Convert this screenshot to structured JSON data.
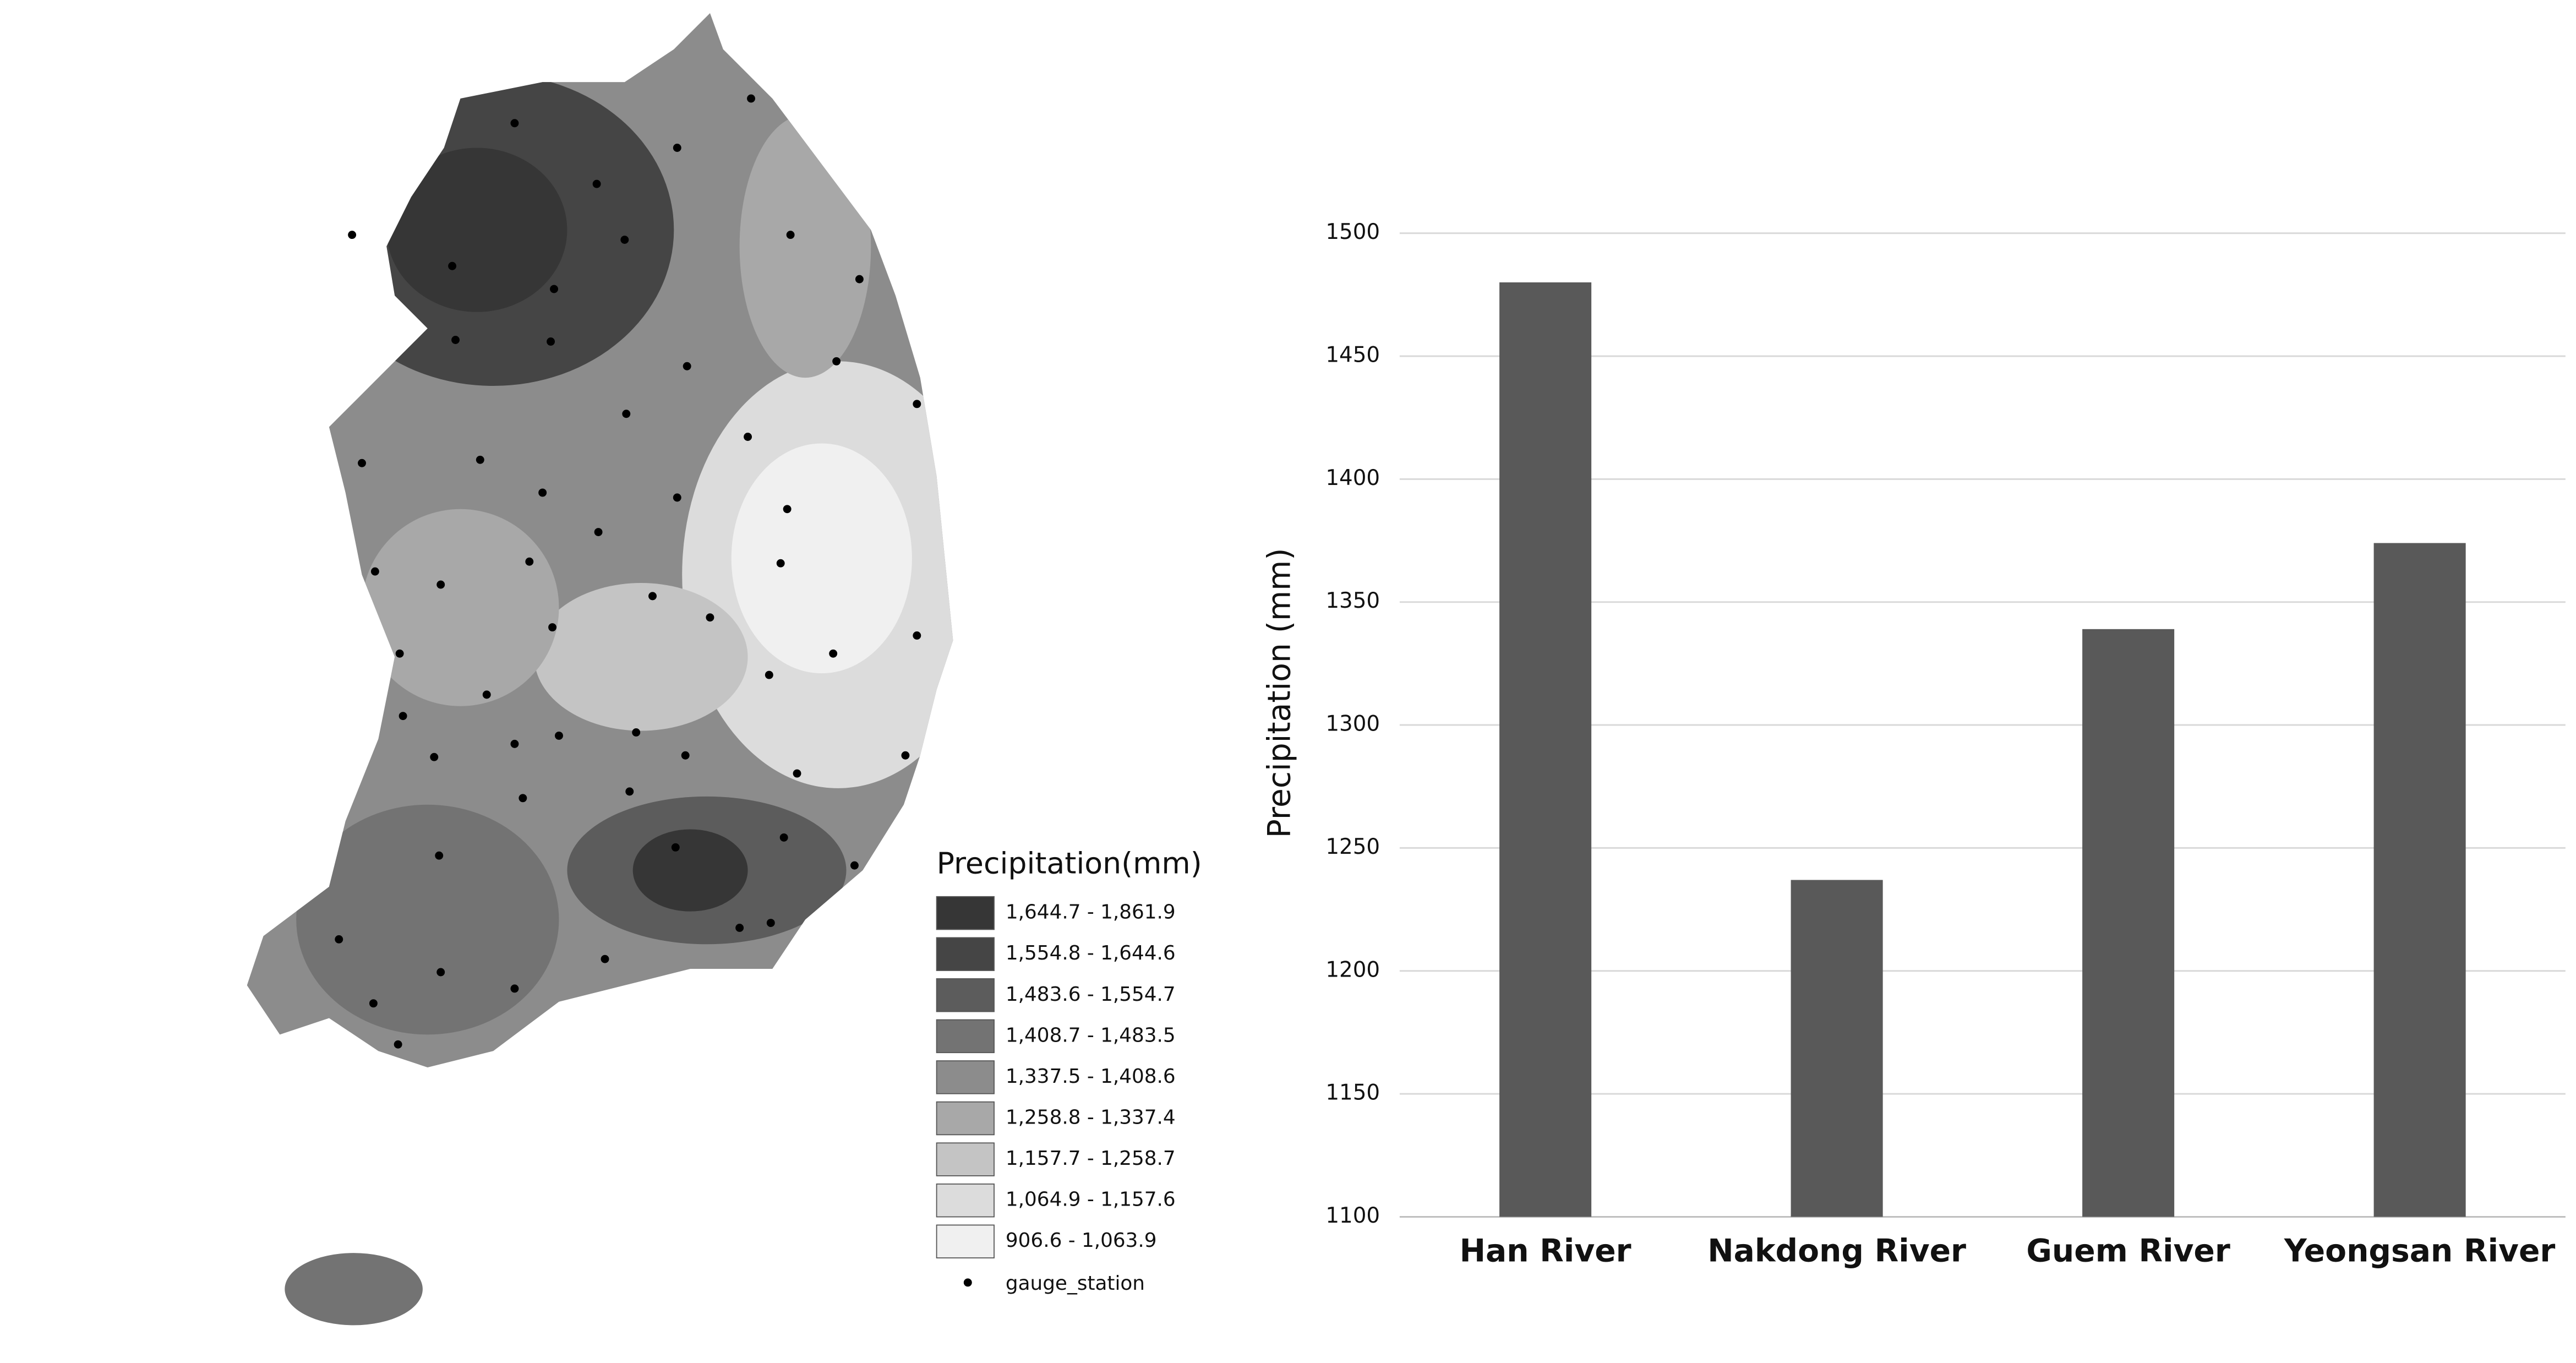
{
  "map": {
    "legend_title": "Precipitation(mm)",
    "classes": [
      {
        "label": "1,644.7 - 1,861.9",
        "color": "#363636"
      },
      {
        "label": "1,554.8 - 1,644.6",
        "color": "#454545"
      },
      {
        "label": "1,483.6 - 1,554.7",
        "color": "#5c5c5c"
      },
      {
        "label": "1,408.7 - 1,483.5",
        "color": "#737373"
      },
      {
        "label": "1,337.5 - 1,408.6",
        "color": "#8c8c8c"
      },
      {
        "label": "1,258.8 - 1,337.4",
        "color": "#a8a8a8"
      },
      {
        "label": "1,157.7 - 1,258.7",
        "color": "#c4c4c4"
      },
      {
        "label": "1,064.9 - 1,157.6",
        "color": "#dcdcdc"
      },
      {
        "label": "906.6 - 1,063.9",
        "color": "#f0f0f0"
      }
    ],
    "point_label": "gauge_station"
  },
  "chart_data": {
    "type": "bar",
    "y_label": "Precipitation (mm)",
    "categories": [
      "Han River",
      "Nakdong River",
      "Guem River",
      "Yeongsan River"
    ],
    "values": [
      1480,
      1237,
      1339,
      1374
    ],
    "color": "#595959",
    "ylim": [
      1100,
      1500
    ],
    "yticks": [
      1100,
      1150,
      1200,
      1250,
      1300,
      1350,
      1400,
      1450,
      1500
    ],
    "grid": true
  }
}
